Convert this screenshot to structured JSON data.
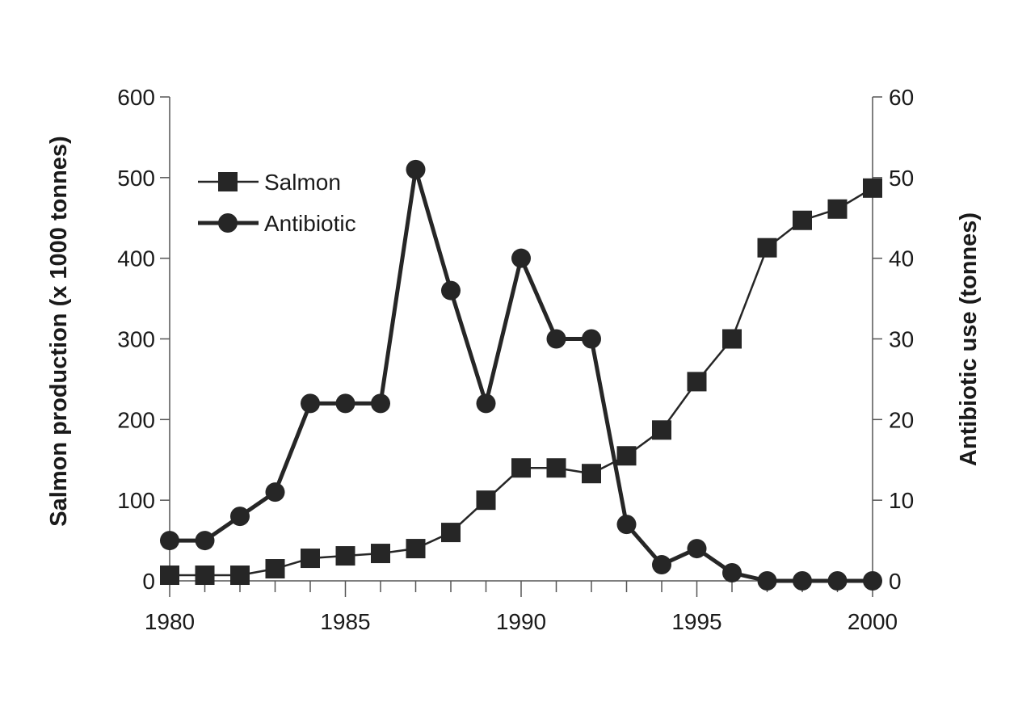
{
  "chart_data": {
    "type": "line",
    "title": "",
    "xlabel": "",
    "ylabel": "Salmon production (x 1000 tonnes)",
    "y2label": "Antibiotic use (tonnes)",
    "xlim": [
      1980,
      2000
    ],
    "ylim": [
      0,
      600
    ],
    "y2lim": [
      0,
      60
    ],
    "x_ticks": [
      1980,
      1985,
      1990,
      1995,
      2000
    ],
    "y_ticks": [
      0,
      100,
      200,
      300,
      400,
      500,
      600
    ],
    "y2_ticks": [
      0,
      10,
      20,
      30,
      40,
      50,
      60
    ],
    "grid": false,
    "legend_position": "top-left",
    "x": [
      1980,
      1981,
      1982,
      1983,
      1984,
      1985,
      1986,
      1987,
      1988,
      1989,
      1990,
      1991,
      1992,
      1993,
      1994,
      1995,
      1996,
      1997,
      1998,
      1999,
      2000
    ],
    "series": [
      {
        "name": "Salmon",
        "axis": "left",
        "marker": "square",
        "values": [
          7,
          7,
          7,
          15,
          28,
          31,
          34,
          40,
          60,
          100,
          140,
          140,
          133,
          155,
          187,
          247,
          300,
          413,
          447,
          461,
          487
        ]
      },
      {
        "name": "Antibiotic",
        "axis": "right",
        "marker": "circle",
        "values": [
          5,
          5,
          8,
          11,
          22,
          22,
          22,
          51,
          36,
          22,
          40,
          30,
          30,
          7,
          2,
          4,
          1,
          0,
          0,
          0,
          0
        ]
      }
    ],
    "colors": {
      "series": "#262626",
      "axis": "#555555",
      "text": "#1a1a1a"
    }
  }
}
